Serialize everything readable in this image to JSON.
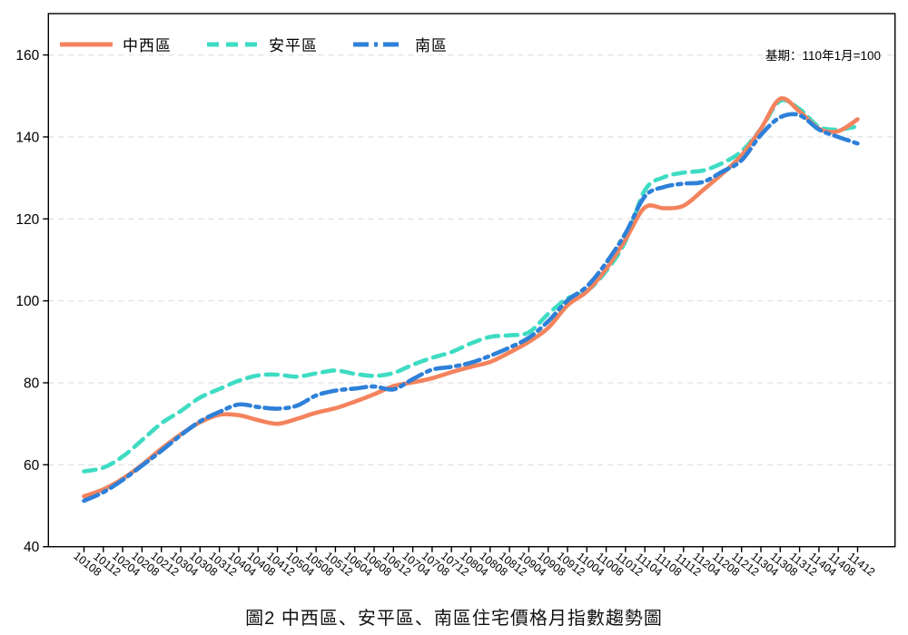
{
  "chart_data": {
    "type": "line",
    "title": "圖2 中西區、安平區、南區住宅價格月指數趨勢圖",
    "annotation": "基期：110年1月=100",
    "ylabel": "",
    "xlabel": "",
    "ylim": [
      40,
      160
    ],
    "y_ticks": [
      40,
      60,
      80,
      100,
      120,
      140,
      160
    ],
    "gridlines": [
      60,
      80,
      100,
      120,
      140,
      160
    ],
    "grid": true,
    "legend_position": "top-left",
    "categories": [
      "10108",
      "10112",
      "10204",
      "10208",
      "10212",
      "10304",
      "10308",
      "10312",
      "10404",
      "10408",
      "10412",
      "10504",
      "10508",
      "10512",
      "10604",
      "10608",
      "10612",
      "10704",
      "10708",
      "10712",
      "10804",
      "10808",
      "10812",
      "10904",
      "10908",
      "10912",
      "11004",
      "11008",
      "11012",
      "11104",
      "11108",
      "11112",
      "11204",
      "11208",
      "11212",
      "11304",
      "11308",
      "11312",
      "11404",
      "11408",
      "11412"
    ],
    "series": [
      {
        "name": "中西區",
        "color": "#F4835D",
        "line_style": "solid",
        "dash": "",
        "values": [
          52.3,
          54.0,
          56.6,
          60.0,
          63.9,
          67.4,
          70.4,
          72.2,
          72.1,
          70.9,
          70.0,
          71.2,
          72.7,
          73.8,
          75.4,
          77.2,
          79.2,
          80.1,
          81.1,
          82.6,
          83.9,
          85.1,
          87.4,
          90.0,
          93.4,
          98.9,
          102.3,
          107.8,
          115.0,
          122.8,
          122.6,
          123.2,
          127.0,
          131.0,
          135.5,
          142.0,
          149.3,
          146.2,
          142.0,
          141.4,
          144.3
        ]
      },
      {
        "name": "安平區",
        "color": "#3EDCC3",
        "line_style": "dashed",
        "dash": "13 8",
        "values": [
          58.4,
          59.3,
          62.0,
          66.0,
          70.1,
          73.1,
          76.4,
          78.5,
          80.5,
          81.8,
          82.0,
          81.5,
          82.3,
          83.0,
          82.2,
          81.7,
          82.4,
          84.4,
          86.1,
          87.5,
          89.6,
          91.2,
          91.6,
          92.3,
          96.8,
          100.6,
          102.4,
          107.3,
          114.6,
          127.0,
          130.2,
          131.3,
          131.8,
          133.6,
          136.5,
          142.0,
          148.8,
          146.8,
          142.5,
          141.8,
          142.6
        ]
      },
      {
        "name": "南區",
        "color": "#2E80D8",
        "line_style": "dash-dot",
        "dash": "17 6 4 6",
        "values": [
          51.2,
          53.3,
          56.3,
          59.8,
          63.4,
          67.2,
          70.6,
          72.9,
          74.7,
          74.1,
          73.7,
          74.4,
          76.9,
          78.1,
          78.6,
          79.1,
          78.4,
          80.9,
          83.2,
          83.9,
          84.9,
          86.6,
          88.6,
          91.0,
          95.0,
          100.1,
          103.5,
          109.3,
          116.5,
          125.5,
          127.8,
          128.6,
          129.0,
          131.5,
          134.3,
          140.5,
          144.8,
          145.3,
          141.8,
          140.0,
          138.4
        ]
      }
    ],
    "axis_color": "#000000",
    "grid_color": "#e2e2e2"
  }
}
